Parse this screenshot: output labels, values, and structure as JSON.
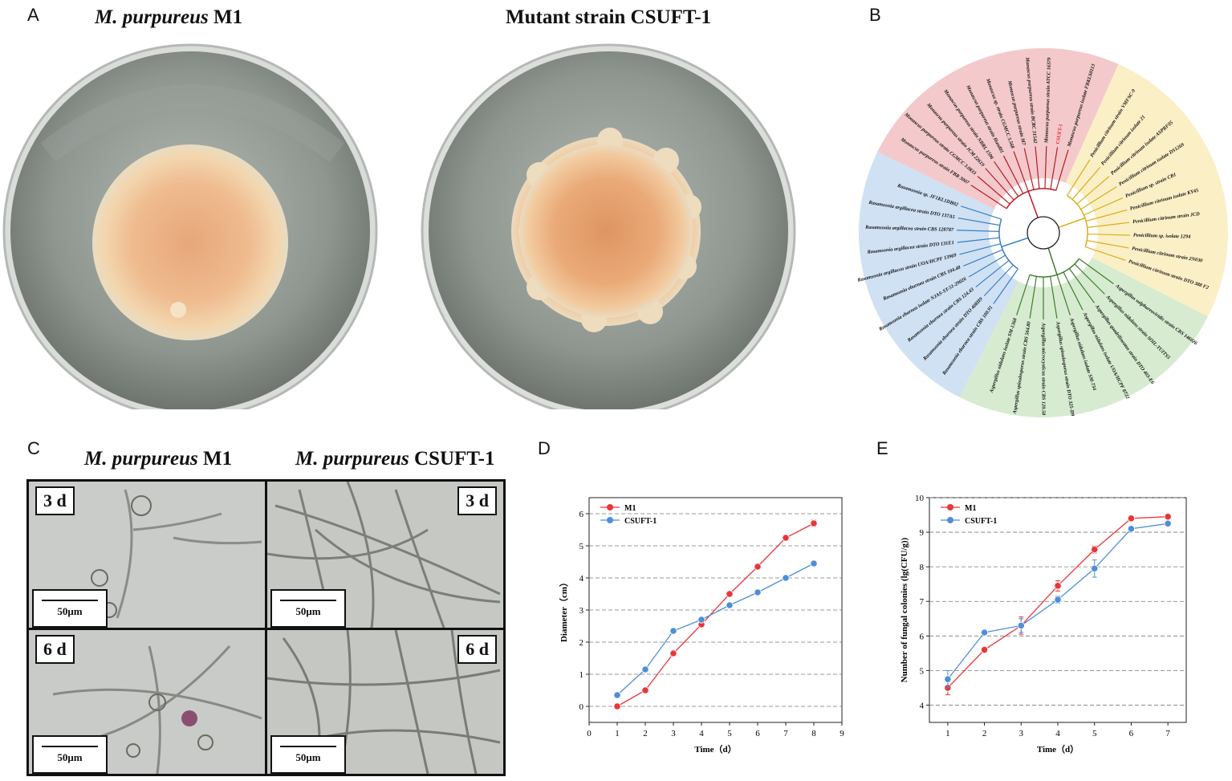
{
  "panels": {
    "A": {
      "letter": "A",
      "left_title_italic": "M. purpureus",
      "left_title_rest": " M1",
      "right_title": "Mutant strain CSUFT-1"
    },
    "B": {
      "letter": "B",
      "clades": [
        {
          "name": "Rasamsonia",
          "color": "#cfe1f3",
          "line": "#3a7fc4",
          "taxa": [
            "Rasamsonia eburnea strain CBS 100.91",
            "Rasamsonia eburnea strain DTO 408H9",
            "Rasamsonia eburnea strain CBS 124.43",
            "Rasamsonia eburnea isolate NJAS-ST-51-29026",
            "Rasamsonia eburnea strain CBS 104.48",
            "Rasamsonia argillacea strain UOA/HCPF 13969",
            "Rasamsonia argillacea strain DTO 131E1",
            "Rasamsonia argillacea strain CBS 128787",
            "Rasamsonia argillacea strain DTO 137A5",
            "Rasamsonia sp. JF1KL1DB02"
          ]
        },
        {
          "name": "Monascus",
          "color": "#f4c9cc",
          "line": "#b81c22",
          "taxa": [
            "Monascus purpureus strain FBR 3007",
            "Monascus purpureus strain CGMCC 3.0833",
            "Monascus purpureus strain JCM 22619",
            "Monascus purpureus strain NBRL 1596",
            "Monascus purpureus strain Hand01",
            "Monascus sp. strain CGMCC 3.568",
            "Monascus purpureus strain M7",
            "Monascus purpureus strain BCRC 31542",
            "Monascus purpureus strain ATCC 16379",
            "CSUFT-1",
            "Monascus purpureus isolate FBKLS0113"
          ]
        },
        {
          "name": "Penicillium",
          "color": "#fbefc6",
          "line": "#d9ae1a",
          "taxa": [
            "Penicillium citrinum strain VMFSC-9",
            "Penicillium citrinum isolate 21",
            "Penicillium citrinum isolate ASPRF05",
            "Penicillium citrinum isolate DS1269",
            "Penicillium sp. strain CB1",
            "Penicillium citrinum isolate KY45",
            "Penicillium citrinum strain JCD",
            "Penicillium sp. isolate 1294",
            "Penicillium citrinum strain 2N030",
            "Penicillium citrinum strain DTO 388 F2"
          ]
        },
        {
          "name": "Aspergillus",
          "color": "#d6ebd0",
          "line": "#3e7d2b",
          "taxa": [
            "Aspergillus sulphureoviridis strain CBS 146026",
            "Aspergillus nidulans strain SOIL-TUITS5",
            "Aspergillus quadrilineatus strain DTO 403-E6",
            "Aspergillus nidulans isolate UOA/HCPF 8722",
            "Aspergillus nidulans isolate SM-734",
            "Aspergillus spinulosporus strain DTO 325-D9",
            "Aspergillus microcysticus strain CBS 120.58",
            "Aspergillus spinulosporus strain CBS 564.80",
            "Aspergillus nidulans isolate SM-1368"
          ]
        }
      ],
      "highlight_color": "#e0242b"
    },
    "C": {
      "letter": "C",
      "left_title_italic": "M. purpureus",
      "left_title_rest": " M1",
      "right_title_italic": "M. purpureus",
      "right_title_rest": " CSUFT-1",
      "day3": "3 d",
      "day6": "6 d",
      "scale": "50μm"
    },
    "D": {
      "letter": "D"
    },
    "E": {
      "letter": "E"
    }
  },
  "chart_data": [
    {
      "type": "line",
      "panel": "D",
      "xlabel": "Time（d）",
      "ylabel": "Diameter（cm）",
      "xlim": [
        0,
        9
      ],
      "ylim": [
        -0.5,
        6.5
      ],
      "xticks": [
        0,
        1,
        2,
        3,
        4,
        5,
        6,
        7,
        8,
        9
      ],
      "yticks": [
        0,
        1,
        2,
        3,
        4,
        5,
        6
      ],
      "grid": "horizontal dashed",
      "legend_position": "top-left",
      "series": [
        {
          "name": "M1",
          "color": "#e8363b",
          "x": [
            1,
            2,
            3,
            4,
            5,
            6,
            7,
            8
          ],
          "y": [
            0,
            0.5,
            1.65,
            2.55,
            3.5,
            4.35,
            5.25,
            5.7
          ],
          "err": [
            0,
            0,
            0,
            0,
            0,
            0,
            0,
            0.1
          ]
        },
        {
          "name": "CSUFT-1",
          "color": "#4f8fd6",
          "x": [
            1,
            2,
            3,
            4,
            5,
            6,
            7,
            8
          ],
          "y": [
            0.35,
            1.15,
            2.35,
            2.7,
            3.15,
            3.55,
            4.0,
            4.45
          ],
          "err": [
            0,
            0,
            0,
            0,
            0,
            0,
            0,
            0
          ]
        }
      ]
    },
    {
      "type": "line",
      "panel": "E",
      "xlabel": "Time（d）",
      "ylabel": "Number of fungal colonies (lg(CFU/g))",
      "xlim": [
        0.5,
        7.5
      ],
      "ylim": [
        3.5,
        10
      ],
      "xticks": [
        1,
        2,
        3,
        4,
        5,
        6,
        7
      ],
      "yticks": [
        4,
        5,
        6,
        7,
        8,
        9,
        10
      ],
      "grid": "horizontal dashed",
      "legend_position": "top-left",
      "series": [
        {
          "name": "M1",
          "color": "#e8363b",
          "x": [
            1,
            2,
            3,
            4,
            5,
            6,
            7
          ],
          "y": [
            4.5,
            5.6,
            6.3,
            7.45,
            8.5,
            9.4,
            9.45
          ],
          "err": [
            0.2,
            0.05,
            0.25,
            0.15,
            0.1,
            0.05,
            0.05
          ]
        },
        {
          "name": "CSUFT-1",
          "color": "#4f8fd6",
          "x": [
            1,
            2,
            3,
            4,
            5,
            6,
            7
          ],
          "y": [
            4.75,
            6.1,
            6.3,
            7.05,
            7.95,
            9.1,
            9.25
          ],
          "err": [
            0.25,
            0.05,
            0.2,
            0.1,
            0.25,
            0.05,
            0.05
          ]
        }
      ]
    }
  ]
}
